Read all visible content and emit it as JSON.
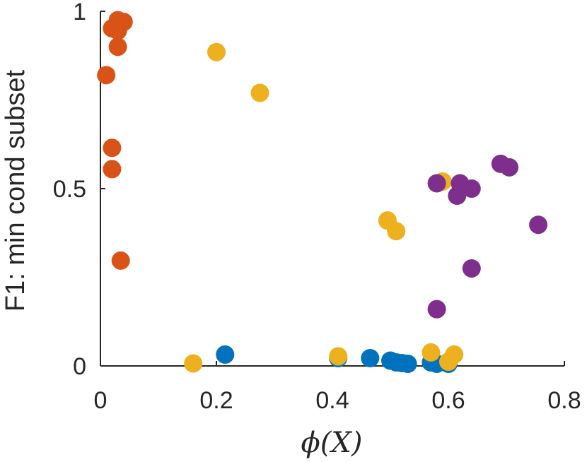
{
  "chart_data": {
    "type": "scatter",
    "title": "",
    "xlabel": "ϕ(X)",
    "ylabel": "F1: min cond subset",
    "xlim": [
      0,
      0.8
    ],
    "ylim": [
      0,
      1
    ],
    "xticks": [
      0,
      0.2,
      0.4,
      0.6,
      0.8
    ],
    "xtick_labels": [
      "0",
      "0.2",
      "0.4",
      "0.6",
      "0.8"
    ],
    "yticks": [
      0,
      0.5,
      1
    ],
    "ytick_labels": [
      "0",
      "0.5",
      "1"
    ],
    "grid": false,
    "legend": null,
    "series": [
      {
        "name": "blue",
        "color": "#0072BD",
        "points": [
          [
            0.215,
            0.032
          ],
          [
            0.41,
            0.022
          ],
          [
            0.465,
            0.022
          ],
          [
            0.5,
            0.015
          ],
          [
            0.51,
            0.01
          ],
          [
            0.52,
            0.008
          ],
          [
            0.53,
            0.006
          ],
          [
            0.57,
            0.01
          ],
          [
            0.58,
            0.006
          ],
          [
            0.6,
            0.006
          ]
        ]
      },
      {
        "name": "orange",
        "color": "#D95319",
        "points": [
          [
            0.03,
            0.975
          ],
          [
            0.04,
            0.97
          ],
          [
            0.02,
            0.952
          ],
          [
            0.03,
            0.945
          ],
          [
            0.03,
            0.9
          ],
          [
            0.01,
            0.82
          ],
          [
            0.02,
            0.615
          ],
          [
            0.02,
            0.555
          ],
          [
            0.035,
            0.297
          ]
        ]
      },
      {
        "name": "yellow",
        "color": "#EDB120",
        "points": [
          [
            0.2,
            0.885
          ],
          [
            0.275,
            0.77
          ],
          [
            0.59,
            0.52
          ],
          [
            0.495,
            0.41
          ],
          [
            0.51,
            0.38
          ],
          [
            0.41,
            0.027
          ],
          [
            0.57,
            0.038
          ],
          [
            0.61,
            0.032
          ],
          [
            0.6,
            0.012
          ],
          [
            0.16,
            0.007
          ]
        ]
      },
      {
        "name": "purple",
        "color": "#7E2F8E",
        "points": [
          [
            0.69,
            0.57
          ],
          [
            0.705,
            0.56
          ],
          [
            0.58,
            0.515
          ],
          [
            0.62,
            0.515
          ],
          [
            0.64,
            0.5
          ],
          [
            0.615,
            0.48
          ],
          [
            0.755,
            0.398
          ],
          [
            0.64,
            0.275
          ],
          [
            0.58,
            0.16
          ]
        ]
      }
    ]
  }
}
